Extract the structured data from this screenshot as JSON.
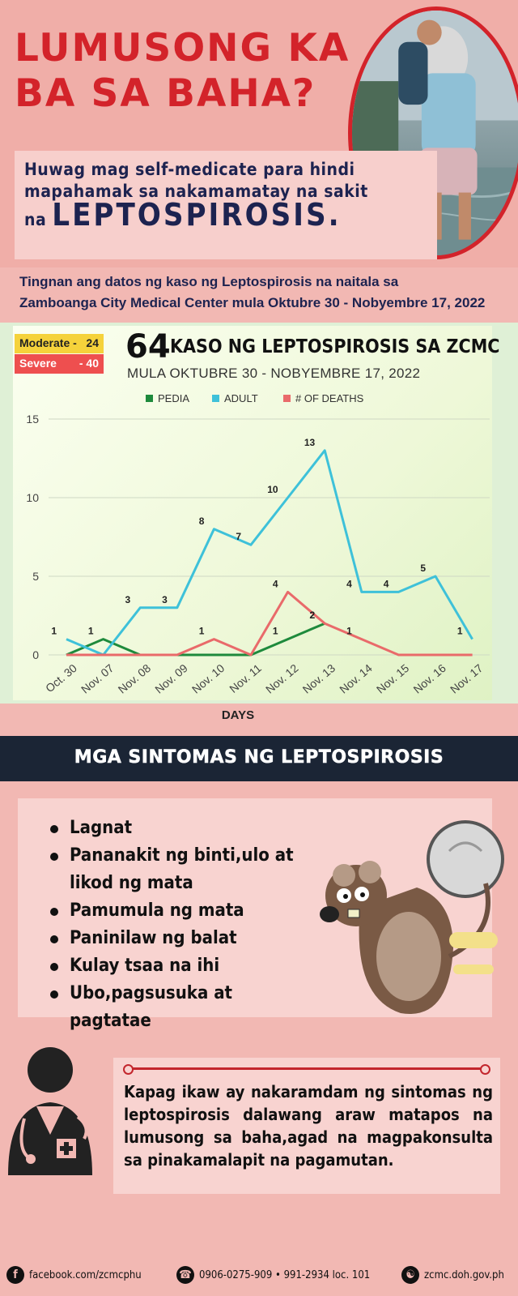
{
  "hero": {
    "title_line1": "LUMUSONG KA",
    "title_line2": "BA SA BAHA?",
    "subtitle_line1": "Huwag mag self-medicate para hindi",
    "subtitle_line2": "mapahamak sa nakamamatay na sakit",
    "subtitle_prefix": "na",
    "subtitle_emphasis": "LEPTOSPIROSIS."
  },
  "data_note": {
    "line1": "Tingnan ang datos ng kaso ng Leptospirosis na naitala sa",
    "line2": "Zamboanga City Medical Center mula Oktubre 30 - Nobyembre 17, 2022"
  },
  "severity": {
    "moderate_label": "Moderate -",
    "moderate_value": "24",
    "severe_label": "Severe",
    "severe_value": "- 40"
  },
  "chart_header": {
    "big_number": "64",
    "title": "KASO NG LEPTOSPIROSIS SA ZCMC",
    "subtitle": "MULA OKTUBRE 30 - NOBYEMBRE 17, 2022"
  },
  "chart_data": {
    "type": "line",
    "xlabel": "DAYS",
    "ylabel": "",
    "ylim": [
      0,
      15
    ],
    "yticks": [
      0,
      5,
      10,
      15
    ],
    "grid": true,
    "legend_position": "top",
    "categories": [
      "Oct. 30",
      "Nov. 07",
      "Nov. 08",
      "Nov. 09",
      "Nov. 10",
      "Nov. 11",
      "Nov. 12",
      "Nov. 13",
      "Nov. 14",
      "Nov. 15",
      "Nov. 16",
      "Nov. 17"
    ],
    "series": [
      {
        "name": "PEDIA",
        "color": "#1e8a3c",
        "values": [
          0,
          1,
          0,
          0,
          0,
          0,
          1,
          2,
          null,
          null,
          null,
          null
        ]
      },
      {
        "name": "ADULT",
        "color": "#3ec1d9",
        "values": [
          1,
          0,
          3,
          3,
          8,
          7,
          10,
          13,
          4,
          4,
          5,
          1
        ]
      },
      {
        "name": "# OF DEATHS",
        "color": "#e96a6a",
        "values": [
          0,
          0,
          0,
          0,
          1,
          0,
          4,
          2,
          1,
          0,
          0,
          0
        ]
      }
    ],
    "data_labels": [
      {
        "category": "Oct. 30",
        "text": "1"
      },
      {
        "category": "Nov. 07",
        "text": "1"
      },
      {
        "category": "Nov. 08",
        "text": "3"
      },
      {
        "category": "Nov. 09",
        "text": "3"
      },
      {
        "category": "Nov. 10",
        "text": "8"
      },
      {
        "category": "Nov. 10",
        "text": "1"
      },
      {
        "category": "Nov. 11",
        "text": "7"
      },
      {
        "category": "Nov. 12",
        "text": "10"
      },
      {
        "category": "Nov. 12",
        "text": "4"
      },
      {
        "category": "Nov. 12",
        "text": "1"
      },
      {
        "category": "Nov. 13",
        "text": "13"
      },
      {
        "category": "Nov. 13",
        "text": "2"
      },
      {
        "category": "Nov. 13",
        "text": "2"
      },
      {
        "category": "Nov. 14",
        "text": "4"
      },
      {
        "category": "Nov. 14",
        "text": "1"
      },
      {
        "category": "Nov. 15",
        "text": "4"
      },
      {
        "category": "Nov. 16",
        "text": "5"
      },
      {
        "category": "Nov. 17",
        "text": "1"
      }
    ]
  },
  "symptoms": {
    "heading": "MGA SINTOMAS NG LEPTOSPIROSIS",
    "items": [
      "Lagnat",
      "Pananakit ng binti,ulo at likod ng mata",
      "Pamumula ng mata",
      "Paninilaw ng balat",
      "Kulay tsaa na ihi",
      "Ubo,pagsusuka at pagtatae"
    ]
  },
  "advice": {
    "text": "Kapag ikaw ay nakaramdam ng sintomas ng leptospirosis dalawang araw matapos na lumusong sa baha,agad na magpakonsulta sa pinakamalapit na pagamutan."
  },
  "footer": {
    "facebook": "facebook.com/zcmcphu",
    "phone": "0906-0275-909 • 991-2934 loc. 101",
    "website": "zcmc.doh.gov.ph",
    "facebook_icon": "facebook-icon",
    "phone_icon": "phone-icon",
    "web_icon": "globe-icon"
  },
  "colors": {
    "background": "#f2b8b3",
    "title_red": "#d3232a",
    "navy": "#1d2350",
    "moderate": "#f5d23b",
    "severe": "#ee4f4f"
  }
}
